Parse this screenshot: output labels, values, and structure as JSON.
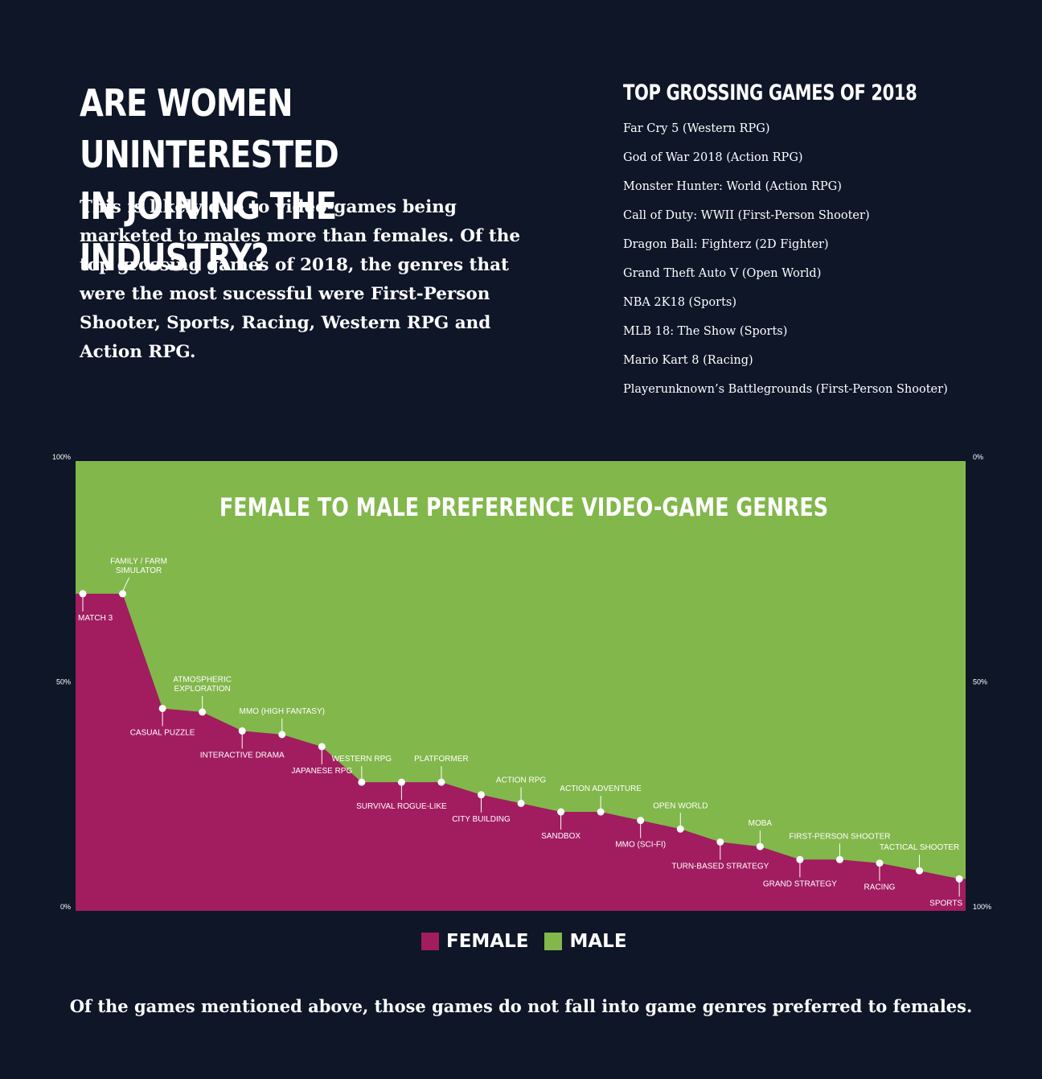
{
  "heading": {
    "line1": "ARE WOMEN UNINTERESTED",
    "line2": "IN JOINING THE INDUSTRY?"
  },
  "intro": "This is likely due to video-games being marketed to males more than females. Of the top grossing games of 2018, the genres that were the most sucessful were First-Person Shooter, Sports, Racing, Western RPG and Action RPG.",
  "top_games": {
    "title": "TOP GROSSING GAMES OF 2018",
    "items": [
      "Far Cry 5 (Western RPG)",
      "God of War 2018 (Action RPG)",
      "Monster Hunter: World (Action RPG)",
      "Call of Duty: WWII (First-Person Shooter)",
      "Dragon Ball: Fighterz (2D Fighter)",
      "Grand Theft Auto V (Open World)",
      "NBA 2K18 (Sports)",
      "MLB 18: The Show (Sports)",
      "Mario Kart 8 (Racing)",
      "Playerunknown’s Battlegrounds (First-Person Shooter)"
    ]
  },
  "chart_data": {
    "type": "area",
    "title": "FEMALE TO MALE PREFERENCE VIDEO-GAME GENRES",
    "left_axis_ticks": [
      "100%",
      "50%",
      "0%"
    ],
    "right_axis_ticks": [
      "0%",
      "50%",
      "100%"
    ],
    "ylim": [
      0,
      100
    ],
    "colors": {
      "female": "#a11d5f",
      "male": "#82b74b",
      "background": "#0e1628"
    },
    "series": [
      {
        "name": "FEMALE",
        "color": "#a11d5f"
      },
      {
        "name": "MALE",
        "color": "#82b74b"
      }
    ],
    "points": [
      {
        "label": "MATCH 3",
        "female": 70.5,
        "side": "below"
      },
      {
        "label": "FAMILY / FARM SIMULATOR",
        "female": 70.5,
        "side": "above"
      },
      {
        "label": "CASUAL PUZZLE",
        "female": 45.0,
        "side": "below"
      },
      {
        "label": "ATMOSPHERIC EXPLORATION",
        "female": 44.2,
        "side": "above"
      },
      {
        "label": "INTERACTIVE DRAMA",
        "female": 40.0,
        "side": "below"
      },
      {
        "label": "MMO (HIGH FANTASY)",
        "female": 39.2,
        "side": "above"
      },
      {
        "label": "JAPANESE RPG",
        "female": 36.5,
        "side": "below"
      },
      {
        "label": "WESTERN RPG",
        "female": 28.6,
        "side": "above"
      },
      {
        "label": "SURVIVAL ROGUE-LIKE",
        "female": 28.6,
        "side": "below"
      },
      {
        "label": "PLATFORMER",
        "female": 28.6,
        "side": "above"
      },
      {
        "label": "CITY BUILDING",
        "female": 25.8,
        "side": "below"
      },
      {
        "label": "ACTION RPG",
        "female": 23.9,
        "side": "above"
      },
      {
        "label": "SANDBOX",
        "female": 22.0,
        "side": "below"
      },
      {
        "label": "ACTION ADVENTURE",
        "female": 22.0,
        "side": "above"
      },
      {
        "label": "MMO (SCI-FI)",
        "female": 20.1,
        "side": "below"
      },
      {
        "label": "OPEN WORLD",
        "female": 18.2,
        "side": "above"
      },
      {
        "label": "TURN-BASED STRATEGY",
        "female": 15.3,
        "side": "below"
      },
      {
        "label": "MOBA",
        "female": 14.3,
        "side": "above"
      },
      {
        "label": "GRAND STRATEGY",
        "female": 11.4,
        "side": "below"
      },
      {
        "label": "FIRST-PERSON SHOOTER",
        "female": 11.4,
        "side": "above"
      },
      {
        "label": "RACING",
        "female": 10.6,
        "side": "below"
      },
      {
        "label": "TACTICAL SHOOTER",
        "female": 8.9,
        "side": "above"
      },
      {
        "label": "SPORTS",
        "female": 7.1,
        "side": "below"
      }
    ]
  },
  "legend": {
    "female": "FEMALE",
    "male": "MALE"
  },
  "footer": "Of the games mentioned above, those games do not fall into game genres preferred to females."
}
